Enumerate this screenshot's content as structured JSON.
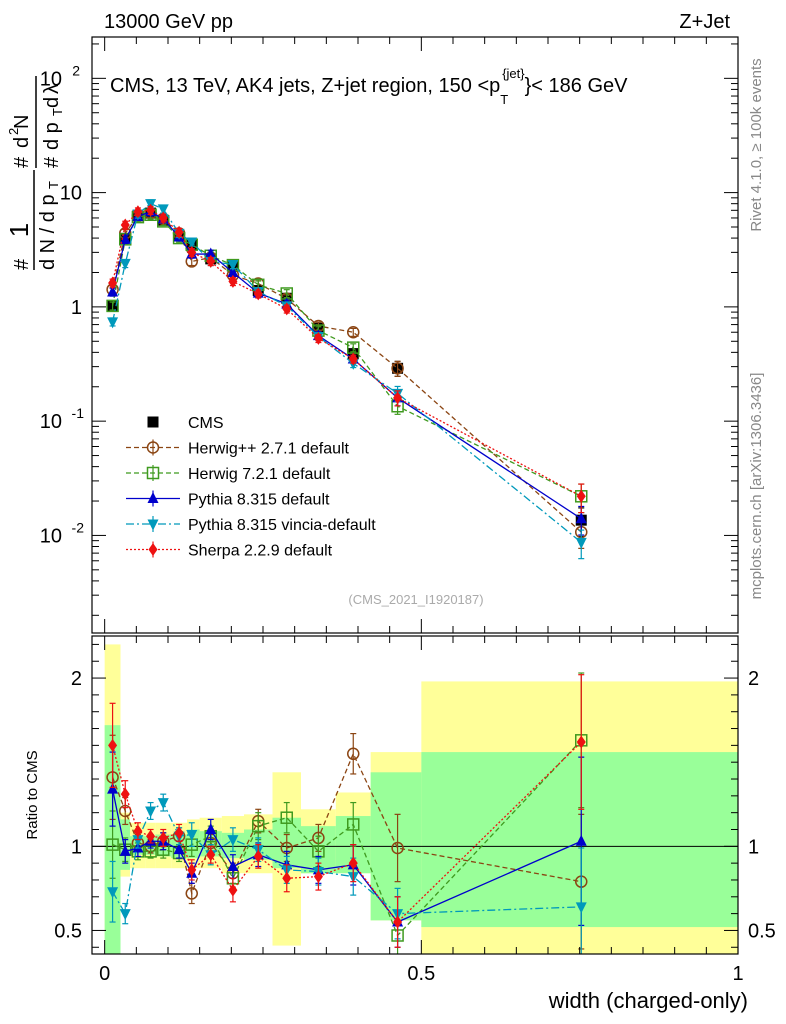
{
  "header": {
    "left": "13000 GeV pp",
    "right": "Z+Jet"
  },
  "side_labels": {
    "rivet": "Rivet 4.1.0, ≥ 100k events",
    "mcplots": "mcplots.cern.ch [arXiv:1306.3436]"
  },
  "chart_data": [
    {
      "type": "scatter",
      "title": "CMS, 13 TeV, AK4 jets, Z+jet region, 150 <p_T^{jet}< 186 GeV",
      "title_main": "CMS, 13 TeV, AK4 jets, Z+jet region, 150 <p",
      "title_sub": "T",
      "title_sup": "{jet}",
      "title_tail": "}< 186 GeV",
      "ylabel": "1/N dN/dp_T dλ (d²N / dp_T dλ)",
      "yscale": "log",
      "ylim": [
        0.0014,
        230
      ],
      "xlim": [
        -0.02,
        1.0
      ],
      "y_ticks": [
        {
          "v": 0.01,
          "base": "10",
          "exp": "-2"
        },
        {
          "v": 0.1,
          "base": "10",
          "exp": "-1"
        },
        {
          "v": 1,
          "base": "1",
          "exp": ""
        },
        {
          "v": 10,
          "base": "10",
          "exp": ""
        },
        {
          "v": 100,
          "base": "10",
          "exp": "2"
        }
      ],
      "watermark": "(CMS_2021_I1920187)",
      "x": [
        0.0125,
        0.0325,
        0.0525,
        0.0725,
        0.0925,
        0.1175,
        0.1375,
        0.1675,
        0.2025,
        0.2425,
        0.2875,
        0.3375,
        0.3925,
        0.4625,
        0.7525
      ],
      "series": [
        {
          "name": "CMS",
          "color": "#000000",
          "marker": "square",
          "line": "none",
          "values": [
            1.01,
            3.98,
            6.26,
            6.62,
            5.73,
            4.17,
            3.47,
            2.63,
            2.26,
            1.39,
            1.19,
            0.65,
            0.39,
            0.29,
            0.0136
          ]
        },
        {
          "name": "Herwig++ 2.7.1 default",
          "color": "#8b4513",
          "marker": "open-circle",
          "line": "dashed",
          "values": [
            1.42,
            4.4,
            6.3,
            6.6,
            5.9,
            4.4,
            2.5,
            2.7,
            1.9,
            1.6,
            1.18,
            0.68,
            0.6,
            0.29,
            0.0107
          ]
        },
        {
          "name": "Herwig 7.2.1 default",
          "color": "#3f9a1f",
          "marker": "open-square",
          "line": "dashed",
          "values": [
            1.02,
            3.9,
            6.1,
            6.4,
            5.6,
            4.0,
            3.5,
            2.8,
            2.32,
            1.56,
            1.31,
            0.62,
            0.44,
            0.135,
            0.022
          ]
        },
        {
          "name": "Pythia 8.315 default",
          "color": "#0000cc",
          "marker": "triangle-up",
          "line": "solid",
          "values": [
            1.35,
            3.9,
            6.2,
            6.8,
            5.9,
            4.1,
            2.9,
            2.9,
            2.0,
            1.32,
            1.06,
            0.56,
            0.35,
            0.16,
            0.014
          ]
        },
        {
          "name": "Pythia 8.315 vincia-default",
          "color": "#0099bb",
          "marker": "triangle-down",
          "line": "dashdot",
          "values": [
            0.74,
            2.4,
            6.5,
            8.0,
            7.2,
            4.4,
            3.7,
            2.5,
            2.35,
            1.36,
            1.02,
            0.55,
            0.32,
            0.175,
            0.0087
          ]
        },
        {
          "name": "Sherpa 2.2.9 default",
          "color": "#ee1111",
          "marker": "diamond",
          "line": "dotted",
          "values": [
            1.62,
            5.2,
            6.8,
            7.0,
            6.0,
            4.5,
            3.0,
            2.5,
            1.67,
            1.3,
            0.96,
            0.53,
            0.35,
            0.16,
            0.022
          ]
        }
      ]
    },
    {
      "type": "scatter",
      "ylabel": "Ratio to CMS",
      "xlabel": "width (charged-only)",
      "ylim": [
        0.36,
        2.25
      ],
      "xlim": [
        -0.02,
        1.0
      ],
      "x_ticks": [
        {
          "v": 0,
          "label": "0"
        },
        {
          "v": 0.5,
          "label": "0.5"
        },
        {
          "v": 1,
          "label": "1"
        }
      ],
      "y_ticks": [
        {
          "v": 0.5,
          "label": "0.5"
        },
        {
          "v": 1,
          "label": "1"
        },
        {
          "v": 2,
          "label": "2"
        }
      ],
      "bins": [
        {
          "lo": 0.0,
          "hi": 0.025,
          "g": [
            0.32,
            1.72
          ],
          "y": [
            0.32,
            2.2
          ]
        },
        {
          "lo": 0.025,
          "hi": 0.04,
          "g": [
            0.86,
            1.16
          ],
          "y": [
            0.82,
            1.2
          ]
        },
        {
          "lo": 0.04,
          "hi": 0.065,
          "g": [
            0.95,
            1.06
          ],
          "y": [
            0.87,
            1.14
          ]
        },
        {
          "lo": 0.065,
          "hi": 0.08,
          "g": [
            0.95,
            1.06
          ],
          "y": [
            0.87,
            1.14
          ]
        },
        {
          "lo": 0.08,
          "hi": 0.105,
          "g": [
            0.94,
            1.07
          ],
          "y": [
            0.87,
            1.14
          ]
        },
        {
          "lo": 0.105,
          "hi": 0.13,
          "g": [
            0.93,
            1.07
          ],
          "y": [
            0.87,
            1.14
          ]
        },
        {
          "lo": 0.13,
          "hi": 0.15,
          "g": [
            0.93,
            1.1
          ],
          "y": [
            0.87,
            1.16
          ]
        },
        {
          "lo": 0.15,
          "hi": 0.185,
          "g": [
            0.94,
            1.09
          ],
          "y": [
            0.87,
            1.17
          ]
        },
        {
          "lo": 0.185,
          "hi": 0.22,
          "g": [
            0.93,
            1.08
          ],
          "y": [
            0.84,
            1.18
          ]
        },
        {
          "lo": 0.22,
          "hi": 0.265,
          "g": [
            0.92,
            1.1
          ],
          "y": [
            0.84,
            1.19
          ]
        },
        {
          "lo": 0.265,
          "hi": 0.31,
          "g": [
            0.87,
            1.17
          ],
          "y": [
            0.41,
            1.44
          ]
        },
        {
          "lo": 0.31,
          "hi": 0.365,
          "g": [
            0.84,
            1.12
          ],
          "y": [
            0.84,
            1.22
          ]
        },
        {
          "lo": 0.365,
          "hi": 0.42,
          "g": [
            0.84,
            1.18
          ],
          "y": [
            0.84,
            1.32
          ]
        },
        {
          "lo": 0.42,
          "hi": 0.5,
          "g": [
            0.56,
            1.44
          ],
          "y": [
            0.56,
            1.56
          ]
        },
        {
          "lo": 0.5,
          "hi": 1.0,
          "g": [
            0.52,
            1.56
          ],
          "y": [
            0.36,
            1.98
          ]
        }
      ],
      "series": [
        {
          "name": "Herwig++ 2.7.1 default",
          "values": [
            1.41,
            1.21,
            1.02,
            1.0,
            1.03,
            1.06,
            0.72,
            1.02,
            0.84,
            1.15,
            0.99,
            1.05,
            1.55,
            0.99,
            0.79
          ],
          "err": [
            0.25,
            0.08,
            0.05,
            0.04,
            0.05,
            0.05,
            0.06,
            0.05,
            0.06,
            0.07,
            0.08,
            0.08,
            0.12,
            0.2,
            0.4
          ]
        },
        {
          "name": "Herwig 7.2.1 default",
          "values": [
            1.01,
            0.98,
            0.97,
            0.97,
            0.98,
            0.96,
            1.01,
            1.06,
            0.81,
            1.12,
            1.17,
            0.97,
            1.13,
            0.47,
            1.63
          ],
          "err": [
            0.2,
            0.07,
            0.05,
            0.04,
            0.05,
            0.05,
            0.07,
            0.06,
            0.07,
            0.08,
            0.09,
            0.09,
            0.13,
            0.15,
            0.4
          ]
        },
        {
          "name": "Pythia 8.315 default",
          "values": [
            1.34,
            0.97,
            0.99,
            1.03,
            1.03,
            0.98,
            0.84,
            1.1,
            0.88,
            0.95,
            0.89,
            0.86,
            0.89,
            0.55,
            1.03
          ],
          "err": [
            0.22,
            0.07,
            0.05,
            0.04,
            0.05,
            0.05,
            0.06,
            0.06,
            0.07,
            0.07,
            0.08,
            0.08,
            0.12,
            0.15,
            0.5
          ]
        },
        {
          "name": "Pythia 8.315 vincia-default",
          "values": [
            0.73,
            0.6,
            1.04,
            1.21,
            1.26,
            1.06,
            1.07,
            0.95,
            1.04,
            0.98,
            0.86,
            0.85,
            0.82,
            0.6,
            0.64
          ],
          "err": [
            0.18,
            0.06,
            0.05,
            0.05,
            0.05,
            0.05,
            0.07,
            0.06,
            0.07,
            0.07,
            0.08,
            0.08,
            0.11,
            0.15,
            0.35
          ]
        },
        {
          "name": "Sherpa 2.2.9 default",
          "values": [
            1.6,
            1.31,
            1.09,
            1.06,
            1.05,
            1.08,
            0.86,
            0.95,
            0.74,
            0.94,
            0.81,
            0.82,
            0.9,
            0.55,
            1.62
          ],
          "err": [
            0.25,
            0.08,
            0.05,
            0.04,
            0.05,
            0.05,
            0.06,
            0.05,
            0.07,
            0.07,
            0.08,
            0.08,
            0.11,
            0.15,
            0.4
          ]
        }
      ]
    }
  ]
}
